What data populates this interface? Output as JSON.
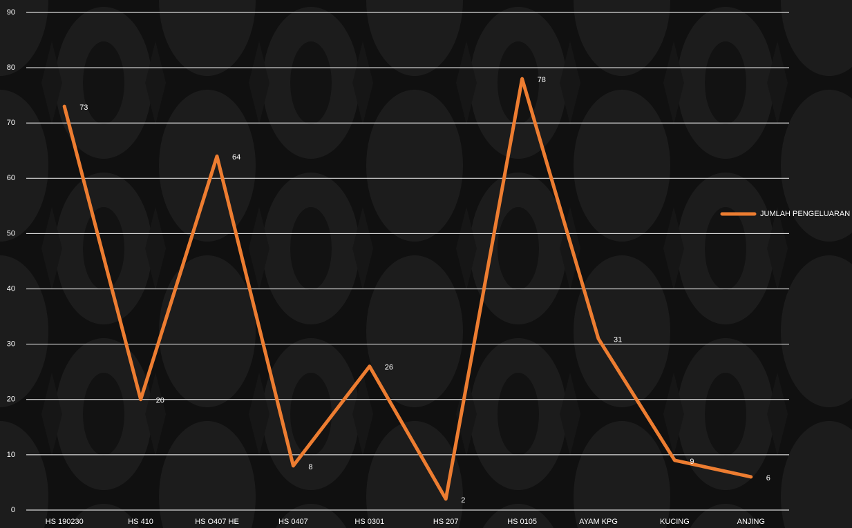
{
  "chart_data": {
    "type": "line",
    "categories": [
      "HS 190230",
      "HS 410",
      "HS O407 HE",
      "HS 0407",
      "HS 0301",
      "HS 207",
      "HS 0105",
      "AYAM KPG",
      "KUCING",
      "ANJING"
    ],
    "series": [
      {
        "name": "JUMLAH PENGELUARAN",
        "color": "#ed7d31",
        "values": [
          73,
          20,
          64,
          8,
          26,
          2,
          78,
          31,
          9,
          6
        ]
      }
    ],
    "ylim": [
      0,
      90
    ],
    "yticks": [
      0,
      10,
      20,
      30,
      40,
      50,
      60,
      70,
      80,
      90
    ],
    "grid": true,
    "legend": "right"
  }
}
